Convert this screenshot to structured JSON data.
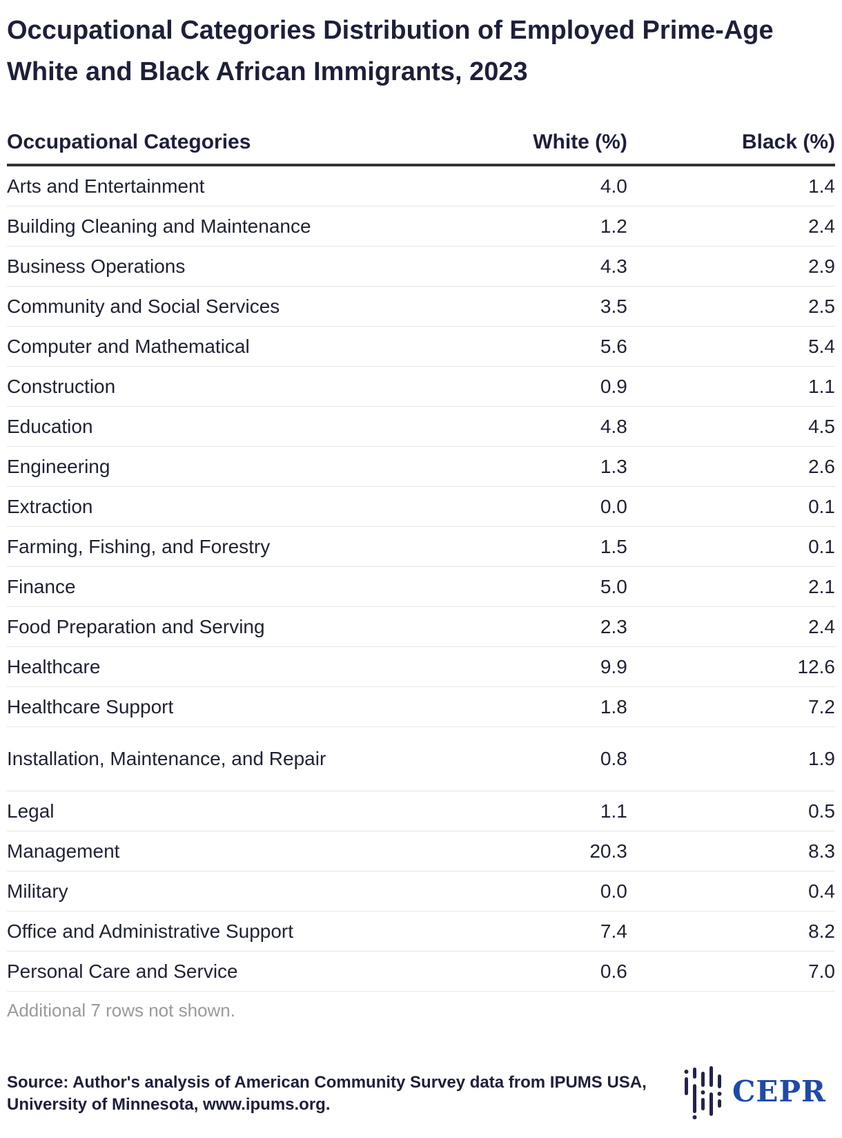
{
  "title": "Occupational Categories Distribution of Employed Prime-Age White and Black African Immigrants, 2023",
  "chart_data": {
    "type": "table",
    "columns": [
      "Occupational Categories",
      "White (%)",
      "Black (%)"
    ],
    "rows": [
      {
        "category": "Arts and Entertainment",
        "white": "4.0",
        "black": "1.4"
      },
      {
        "category": "Building Cleaning and Maintenance",
        "white": "1.2",
        "black": "2.4"
      },
      {
        "category": "Business Operations",
        "white": "4.3",
        "black": "2.9"
      },
      {
        "category": "Community and Social Services",
        "white": "3.5",
        "black": "2.5"
      },
      {
        "category": "Computer and Mathematical",
        "white": "5.6",
        "black": "5.4"
      },
      {
        "category": "Construction",
        "white": "0.9",
        "black": "1.1"
      },
      {
        "category": "Education",
        "white": "4.8",
        "black": "4.5"
      },
      {
        "category": "Engineering",
        "white": "1.3",
        "black": "2.6"
      },
      {
        "category": "Extraction",
        "white": "0.0",
        "black": "0.1"
      },
      {
        "category": "Farming, Fishing, and Forestry",
        "white": "1.5",
        "black": "0.1"
      },
      {
        "category": "Finance",
        "white": "5.0",
        "black": "2.1"
      },
      {
        "category": "Food Preparation and Serving",
        "white": "2.3",
        "black": "2.4"
      },
      {
        "category": "Healthcare",
        "white": "9.9",
        "black": "12.6"
      },
      {
        "category": "Healthcare Support",
        "white": "1.8",
        "black": "7.2"
      },
      {
        "category": "Installation, Maintenance, and Repair",
        "white": "0.8",
        "black": "1.9"
      },
      {
        "category": "Legal",
        "white": "1.1",
        "black": "0.5"
      },
      {
        "category": "Management",
        "white": "20.3",
        "black": "8.3"
      },
      {
        "category": "Military",
        "white": "0.0",
        "black": "0.4"
      },
      {
        "category": "Office and Administrative Support",
        "white": "7.4",
        "black": "8.2"
      },
      {
        "category": "Personal Care and Service",
        "white": "0.6",
        "black": "7.0"
      }
    ]
  },
  "note": "Additional 7 rows not shown.",
  "source": "Source: Author's analysis of American Community Survey data from IPUMS USA, University of Minnesota, www.ipums.org.",
  "logo": {
    "text": "CEPR",
    "color": "#1f4aa8",
    "mark_color": "#23234a"
  }
}
